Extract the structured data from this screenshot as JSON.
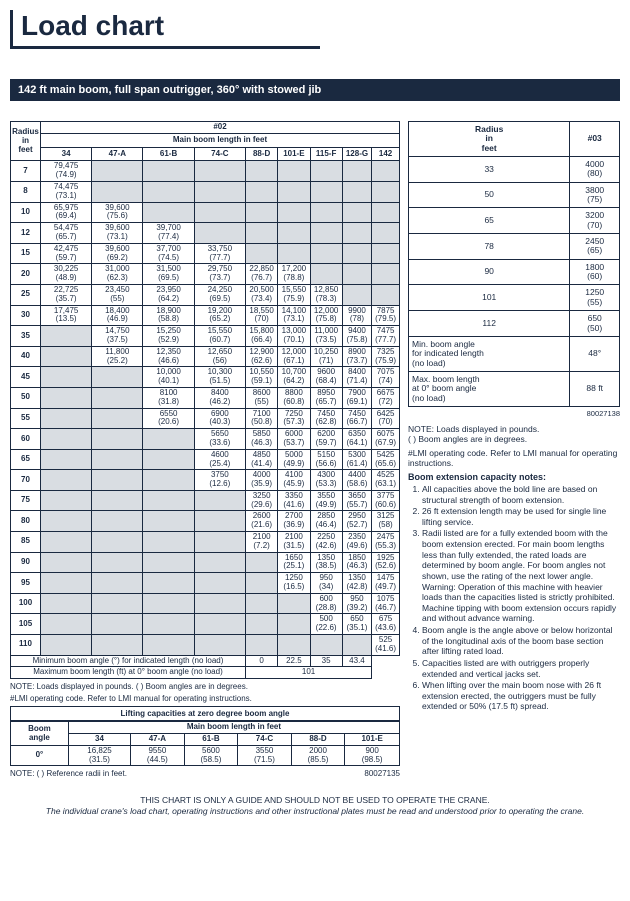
{
  "title": "Load chart",
  "banner": "142 ft main boom, full span outrigger, 360° with stowed jib",
  "table02": {
    "code": "#02",
    "radius_label": "Radius\nin\nfeet",
    "boom_label": "Main boom length in feet",
    "cols": [
      "34",
      "47-A",
      "61-B",
      "74-C",
      "88-D",
      "101-E",
      "115-F",
      "128-G",
      "142"
    ],
    "rows": [
      {
        "r": "7",
        "c": [
          "79,475\n(74.9)",
          "",
          "",
          "",
          "",
          "",
          "",
          "",
          ""
        ]
      },
      {
        "r": "8",
        "c": [
          "74,475\n(73.1)",
          "",
          "",
          "",
          "",
          "",
          "",
          "",
          ""
        ]
      },
      {
        "r": "10",
        "c": [
          "65,975\n(69.4)",
          "39,600\n(75.6)",
          "",
          "",
          "",
          "",
          "",
          "",
          ""
        ]
      },
      {
        "r": "12",
        "c": [
          "54,475\n(65.7)",
          "39,600\n(73.1)",
          "39,700\n(77.4)",
          "",
          "",
          "",
          "",
          "",
          ""
        ]
      },
      {
        "r": "15",
        "c": [
          "42,475\n(59.7)",
          "39,600\n(69.2)",
          "37,700\n(74.5)",
          "33,750\n(77.7)",
          "",
          "",
          "",
          "",
          ""
        ]
      },
      {
        "r": "20",
        "c": [
          "30,225\n(48.9)",
          "31,000\n(62.3)",
          "31,500\n(69.5)",
          "29,750\n(73.7)",
          "22,850\n(76.7)",
          "17,200\n(78.8)",
          "",
          "",
          ""
        ]
      },
      {
        "r": "25",
        "c": [
          "22,725\n(35.7)",
          "23,450\n(55)",
          "23,950\n(64.2)",
          "24,250\n(69.5)",
          "20,500\n(73.4)",
          "15,550\n(75.9)",
          "12,850\n(78.3)",
          "",
          ""
        ]
      },
      {
        "r": "30",
        "c": [
          "17,475\n(13.5)",
          "18,400\n(46.9)",
          "18,900\n(58.8)",
          "19,200\n(65.2)",
          "18,550\n(70)",
          "14,100\n(73.1)",
          "12,000\n(75.8)",
          "9900\n(78)",
          "7875\n(79.5)"
        ]
      },
      {
        "r": "35",
        "c": [
          "",
          "14,750\n(37.5)",
          "15,250\n(52.9)",
          "15,550\n(60.7)",
          "15,800\n(66.4)",
          "13,000\n(70.1)",
          "11,000\n(73.5)",
          "9400\n(75.8)",
          "7475\n(77.7)"
        ]
      },
      {
        "r": "40",
        "c": [
          "",
          "11,800\n(25.2)",
          "12,350\n(46.6)",
          "12,650\n(56)",
          "12,900\n(62.6)",
          "12,000\n(67.1)",
          "10,250\n(71)",
          "8900\n(73.7)",
          "7325\n(75.9)"
        ]
      },
      {
        "r": "45",
        "c": [
          "",
          "",
          "10,000\n(40.1)",
          "10,300\n(51.5)",
          "10,550\n(59.1)",
          "10,700\n(64.2)",
          "9600\n(68.4)",
          "8400\n(71.4)",
          "7075\n(74)"
        ]
      },
      {
        "r": "50",
        "c": [
          "",
          "",
          "8100\n(31.8)",
          "8400\n(46.2)",
          "8600\n(55)",
          "8800\n(60.8)",
          "8950\n(65.7)",
          "7900\n(69.1)",
          "6675\n(72)"
        ]
      },
      {
        "r": "55",
        "c": [
          "",
          "",
          "6550\n(20.6)",
          "6900\n(40.3)",
          "7100\n(50.8)",
          "7250\n(57.3)",
          "7450\n(62.8)",
          "7450\n(66.7)",
          "6425\n(70)"
        ]
      },
      {
        "r": "60",
        "c": [
          "",
          "",
          "",
          "5650\n(33.6)",
          "5850\n(46.3)",
          "6000\n(53.7)",
          "6200\n(59.7)",
          "6350\n(64.1)",
          "6075\n(67.9)"
        ]
      },
      {
        "r": "65",
        "c": [
          "",
          "",
          "",
          "4600\n(25.4)",
          "4850\n(41.4)",
          "5000\n(49.9)",
          "5150\n(56.6)",
          "5300\n(61.4)",
          "5425\n(65.6)"
        ]
      },
      {
        "r": "70",
        "c": [
          "",
          "",
          "",
          "3750\n(12.6)",
          "4000\n(35.9)",
          "4100\n(45.9)",
          "4300\n(53.3)",
          "4400\n(58.6)",
          "4525\n(63.1)"
        ]
      },
      {
        "r": "75",
        "c": [
          "",
          "",
          "",
          "",
          "3250\n(29.6)",
          "3350\n(41.6)",
          "3550\n(49.9)",
          "3650\n(55.7)",
          "3775\n(60.6)"
        ]
      },
      {
        "r": "80",
        "c": [
          "",
          "",
          "",
          "",
          "2600\n(21.6)",
          "2700\n(36.9)",
          "2850\n(46.4)",
          "2950\n(52.7)",
          "3125\n(58)"
        ]
      },
      {
        "r": "85",
        "c": [
          "",
          "",
          "",
          "",
          "2100\n(7.2)",
          "2100\n(31.5)",
          "2250\n(42.6)",
          "2350\n(49.6)",
          "2475\n(55.3)"
        ]
      },
      {
        "r": "90",
        "c": [
          "",
          "",
          "",
          "",
          "",
          "1650\n(25.1)",
          "1350\n(38.5)",
          "1850\n(46.3)",
          "1925\n(52.6)"
        ]
      },
      {
        "r": "95",
        "c": [
          "",
          "",
          "",
          "",
          "",
          "1250\n(16.5)",
          "950\n(34)",
          "1350\n(42.8)",
          "1475\n(49.7)"
        ]
      },
      {
        "r": "100",
        "c": [
          "",
          "",
          "",
          "",
          "",
          "",
          "600\n(28.8)",
          "950\n(39.2)",
          "1075\n(46.7)"
        ]
      },
      {
        "r": "105",
        "c": [
          "",
          "",
          "",
          "",
          "",
          "",
          "500\n(22.6)",
          "650\n(35.1)",
          "675\n(43.6)"
        ]
      },
      {
        "r": "110",
        "c": [
          "",
          "",
          "",
          "",
          "",
          "",
          "",
          "",
          "525\n(41.6)"
        ]
      }
    ],
    "min_label": "Minimum boom angle (°) for indicated length (no load)",
    "min_vals": [
      "",
      "",
      "",
      "",
      "",
      "0",
      "22.5",
      "35",
      "43.4"
    ],
    "max_label": "Maximum boom length (ft) at 0° boom angle (no load)",
    "max_val": "101",
    "note1": "NOTE: Loads displayed in pounds. ( ) Boom angles are in degrees.",
    "note2": "#LMI operating code. Refer to LMI manual for operating instructions."
  },
  "zero_table": {
    "title": "Lifting capacities at zero degree boom angle",
    "angle_label": "Boom\nangle",
    "boom_label": "Main boom length in feet",
    "cols": [
      "34",
      "47-A",
      "61-B",
      "74-C",
      "88-D",
      "101-E"
    ],
    "row_label": "0°",
    "row": [
      "16,825\n(31.5)",
      "9550\n(44.5)",
      "5600\n(58.5)",
      "3550\n(71.5)",
      "2000\n(85.5)",
      "900\n(98.5)"
    ],
    "note": "NOTE: ( ) Reference radii in feet.",
    "ref": "80027135"
  },
  "table03": {
    "code": "#03",
    "radius_label": "Radius\nin\nfeet",
    "rows": [
      [
        "33",
        "4000\n(80)"
      ],
      [
        "50",
        "3800\n(75)"
      ],
      [
        "65",
        "3200\n(70)"
      ],
      [
        "78",
        "2450\n(65)"
      ],
      [
        "90",
        "1800\n(60)"
      ],
      [
        "101",
        "1250\n(55)"
      ],
      [
        "112",
        "650\n(50)"
      ]
    ],
    "min_label": "Min. boom angle\nfor indicated length\n(no load)",
    "min_val": "48°",
    "max_label": "Max. boom length\nat 0° boom angle\n(no load)",
    "max_val": "88 ft",
    "ref": "80027138"
  },
  "right_notes": {
    "note1": "NOTE: Loads displayed in pounds.\n( ) Boom angles are in degrees.",
    "note2": "#LMI operating code. Refer to LMI manual for operating instructions.",
    "title": "Boom extension capacity notes:",
    "items": [
      "All capacities above the bold line are based on structural strength of boom extension.",
      "26 ft extension length may be used for single line lifting service.",
      "Radii listed are for a fully extended boom with the boom extension erected. For main boom lengths less than fully extended, the rated loads are determined by boom angle. For boom angles not shown, use the rating of the next lower angle.\nWarning: Operation of this machine with heavier loads than the capacities listed is strictly prohibited. Machine tipping with boom extension occurs rapidly and without advance warning.",
      "Boom angle is the angle above or below horizontal of the longitudinal axis of the boom base section after lifting rated load.",
      "Capacities listed are with outriggers properly extended and vertical jacks set.",
      "When lifting over the main boom nose with 26 ft extension erected, the outriggers must be fully extended or 50% (17.5 ft) spread."
    ]
  },
  "footer": {
    "l1": "THIS CHART IS ONLY A GUIDE AND SHOULD NOT BE USED TO OPERATE THE CRANE.",
    "l2": "The individual crane's load chart, operating instructions and other instructional plates must be read and understood prior to operating the crane."
  }
}
